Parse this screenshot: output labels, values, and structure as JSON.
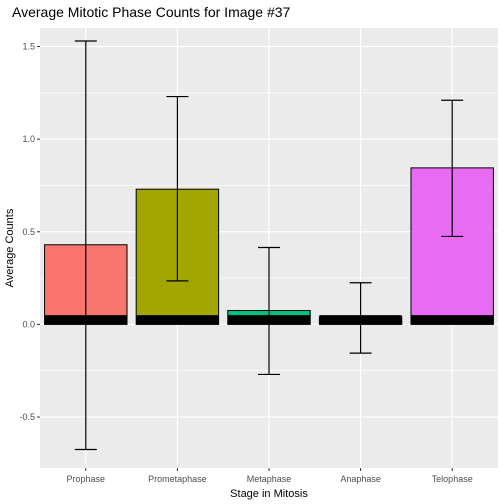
{
  "chart_data": {
    "type": "bar",
    "title": "Average Mitotic Phase Counts for Image #37",
    "xlabel": "Stage in Mitosis",
    "ylabel": "Average Counts",
    "categories": [
      "Prophase",
      "Prometaphase",
      "Metaphase",
      "Anaphase",
      "Telophase"
    ],
    "values": [
      0.43,
      0.73,
      0.075,
      0.04,
      0.845
    ],
    "error_low": [
      -0.675,
      0.235,
      -0.27,
      -0.155,
      0.475
    ],
    "error_high": [
      1.53,
      1.23,
      0.415,
      0.225,
      1.21
    ],
    "bar_colors": [
      "#F8766D",
      "#A3A500",
      "#00BF7D",
      "#00B0F6",
      "#E76BF3"
    ],
    "baseline_band": [
      0.0,
      0.05
    ],
    "yticks": [
      -0.5,
      0.0,
      0.5,
      1.0,
      1.5
    ],
    "ytick_labels": [
      "-0.5",
      "0.0",
      "0.5",
      "1.0",
      "1.5"
    ],
    "ylim": [
      -0.775,
      1.6
    ],
    "grid": true,
    "panel_background": "#EBEBEB",
    "legend": "none"
  }
}
